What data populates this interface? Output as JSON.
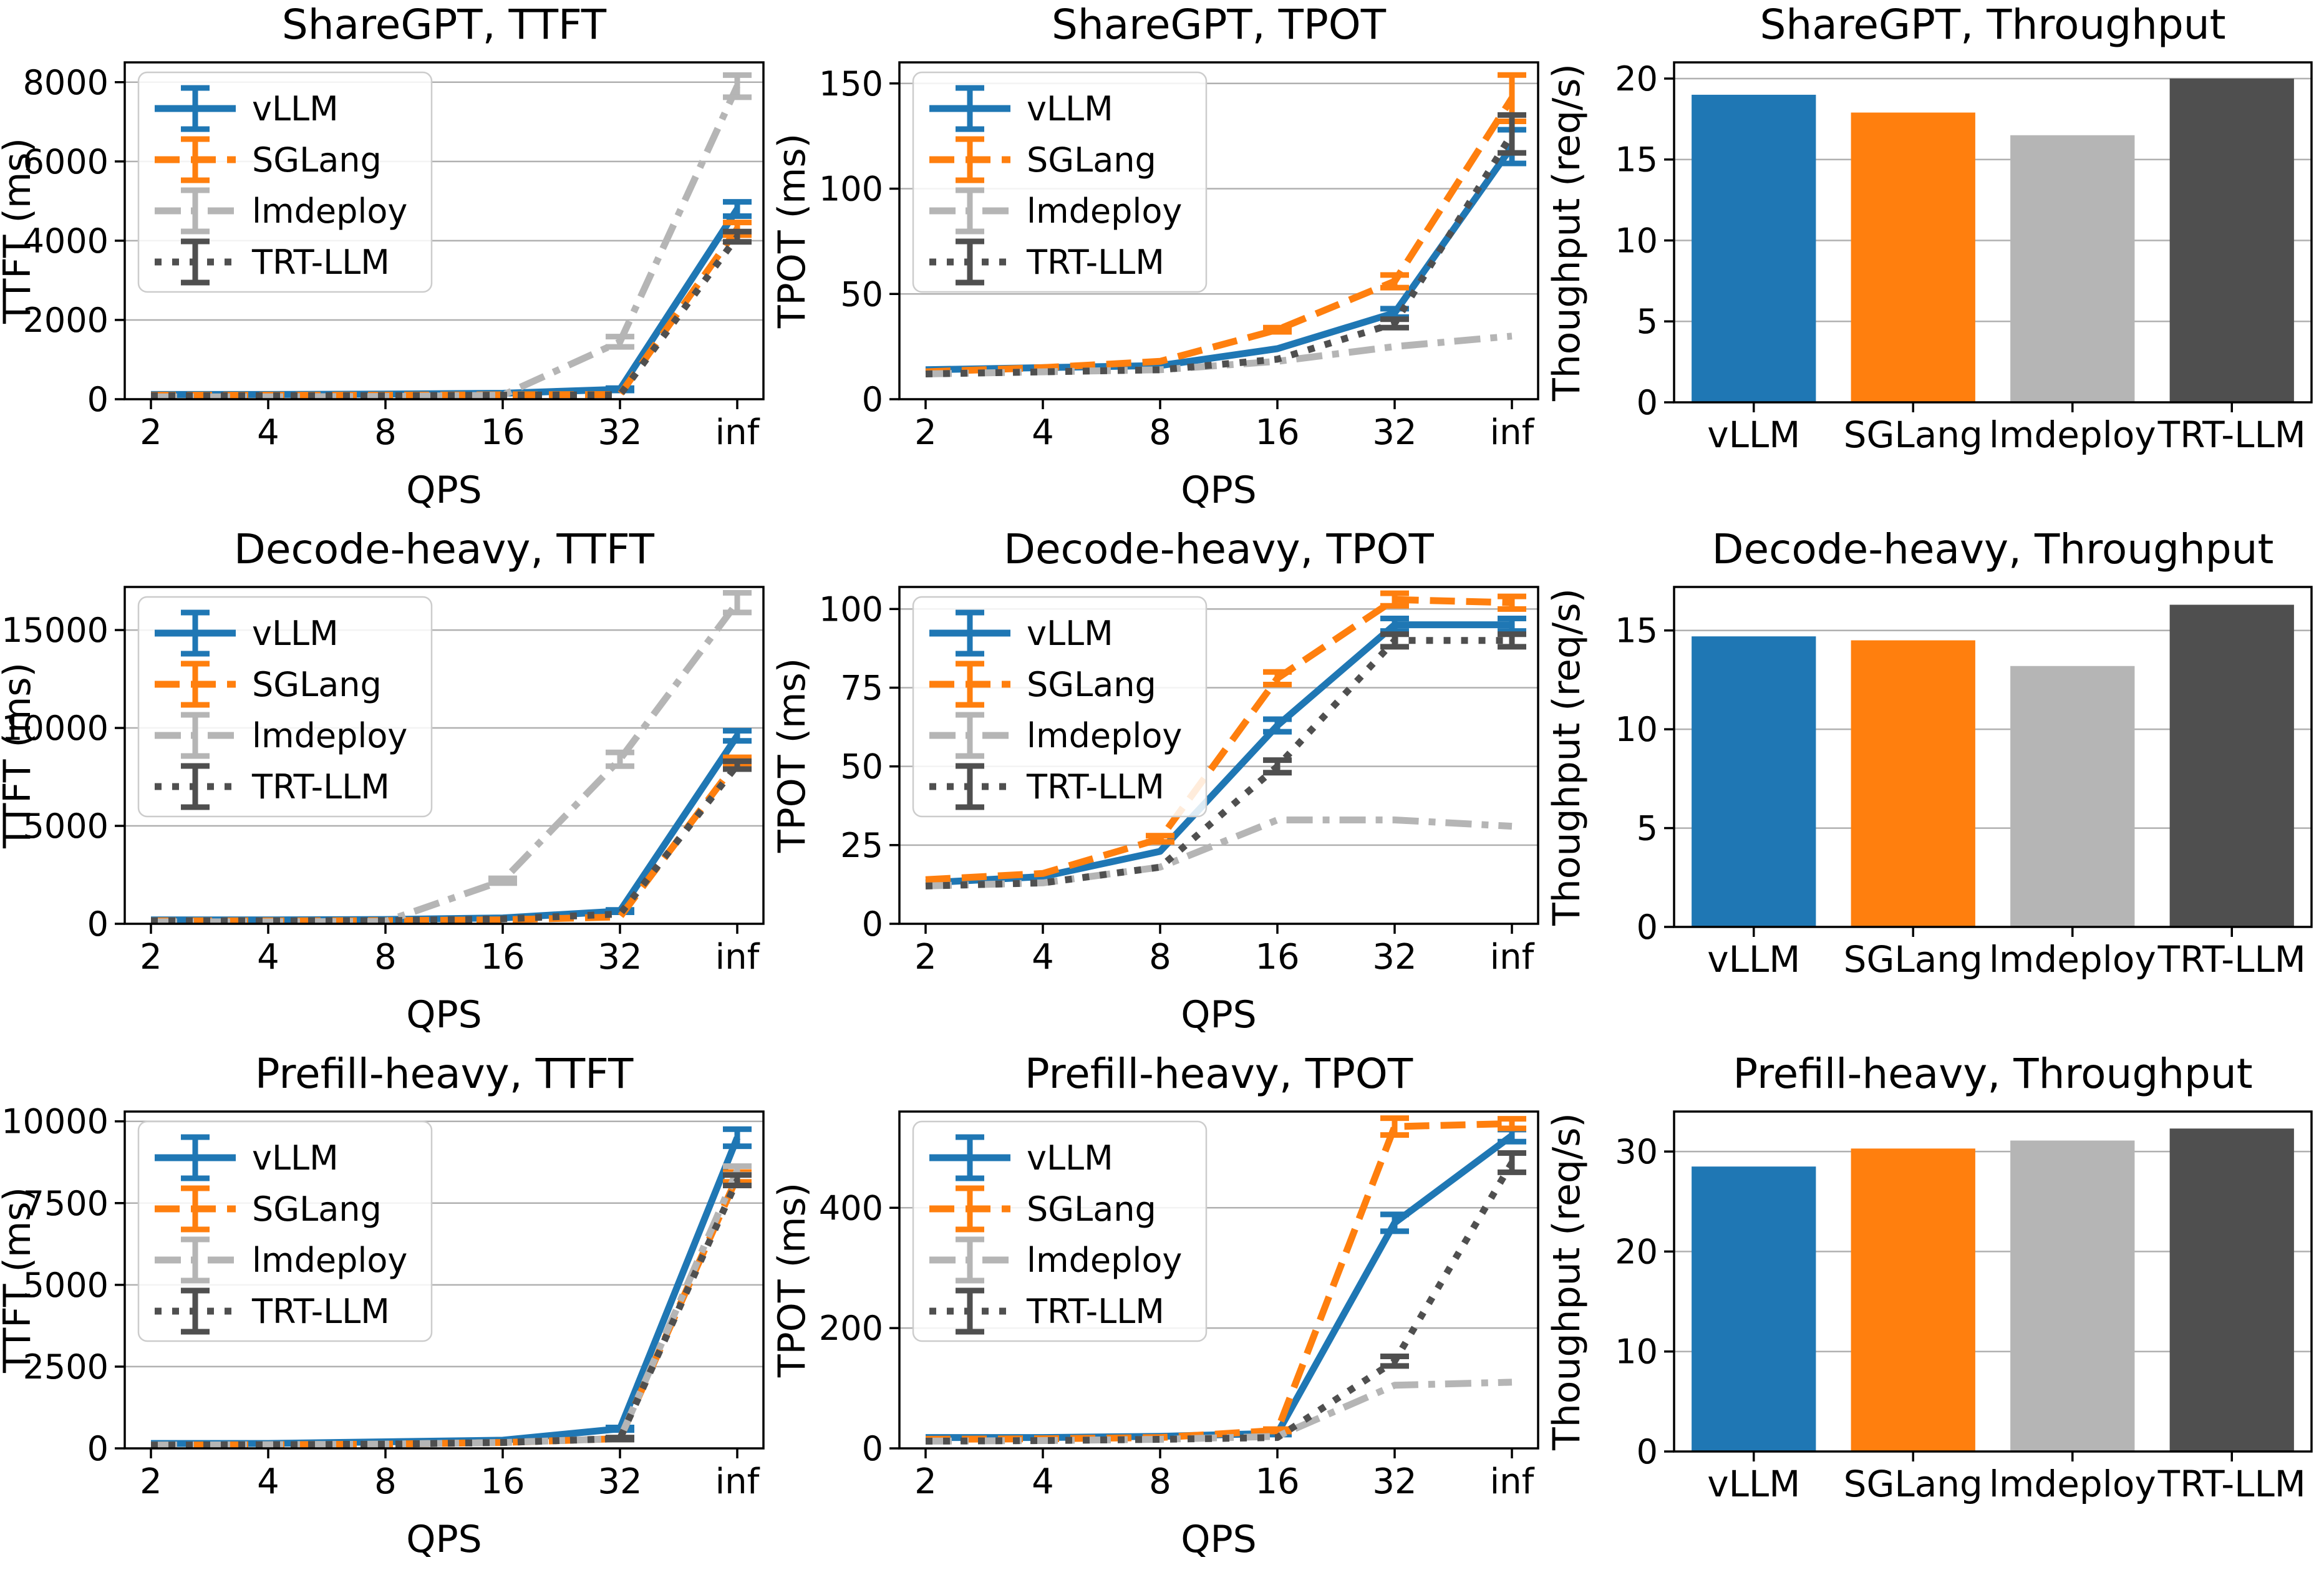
{
  "page": {
    "background": "#ffffff"
  },
  "colors": {
    "vLLM": "#1f77b4",
    "SGLang": "#ff7f0e",
    "lmdeploy": "#b5b5b5",
    "TRT-LLM": "#4f4f4f",
    "grid": "#b0b0b0",
    "spine": "#000000"
  },
  "chart_data": [
    {
      "type": "line",
      "title": "ShareGPT, TTFT",
      "xlabel": "QPS",
      "ylabel": "TTFT (ms)",
      "x_ticklabels": [
        "2",
        "4",
        "8",
        "16",
        "32",
        "inf"
      ],
      "yticks": [
        0,
        2000,
        4000,
        6000,
        8000
      ],
      "ylim": [
        0,
        8500
      ],
      "grid": true,
      "legend": {
        "position": "upper-left",
        "entries": [
          "vLLM",
          "SGLang",
          "lmdeploy",
          "TRT-LLM"
        ]
      },
      "series": [
        {
          "name": "vLLM",
          "color": "#1f77b4",
          "linestyle": "solid",
          "values": [
            120,
            120,
            130,
            150,
            250,
            4800
          ],
          "yerr": [
            0,
            0,
            0,
            0,
            30,
            180
          ]
        },
        {
          "name": "SGLang",
          "color": "#ff7f0e",
          "linestyle": "dashed",
          "values": [
            100,
            100,
            100,
            110,
            120,
            4300
          ],
          "yerr": [
            0,
            0,
            0,
            0,
            0,
            160
          ]
        },
        {
          "name": "lmdeploy",
          "color": "#b5b5b5",
          "linestyle": "dashdot",
          "values": [
            60,
            60,
            70,
            100,
            1450,
            7900
          ],
          "yerr": [
            0,
            0,
            0,
            0,
            130,
            280
          ]
        },
        {
          "name": "TRT-LLM",
          "color": "#4f4f4f",
          "linestyle": "dotted",
          "values": [
            90,
            90,
            90,
            100,
            110,
            4100
          ],
          "yerr": [
            0,
            0,
            0,
            0,
            0,
            130
          ]
        }
      ]
    },
    {
      "type": "line",
      "title": "ShareGPT, TPOT",
      "xlabel": "QPS",
      "ylabel": "TPOT (ms)",
      "x_ticklabels": [
        "2",
        "4",
        "8",
        "16",
        "32",
        "inf"
      ],
      "yticks": [
        0,
        50,
        100,
        150
      ],
      "ylim": [
        0,
        160
      ],
      "grid": true,
      "legend": {
        "position": "upper-left",
        "entries": [
          "vLLM",
          "SGLang",
          "lmdeploy",
          "TRT-LLM"
        ]
      },
      "series": [
        {
          "name": "vLLM",
          "color": "#1f77b4",
          "linestyle": "solid",
          "values": [
            14,
            15,
            16,
            24,
            41,
            120
          ],
          "yerr": [
            0,
            0,
            0,
            0,
            2,
            8
          ]
        },
        {
          "name": "SGLang",
          "color": "#ff7f0e",
          "linestyle": "dashed",
          "values": [
            13,
            15,
            18,
            33,
            56,
            143
          ],
          "yerr": [
            0,
            0,
            0,
            1,
            3,
            11
          ]
        },
        {
          "name": "lmdeploy",
          "color": "#b5b5b5",
          "linestyle": "dashdot",
          "values": [
            12,
            13,
            14,
            18,
            25,
            30
          ],
          "yerr": [
            0,
            0,
            0,
            0,
            0,
            0
          ]
        },
        {
          "name": "TRT-LLM",
          "color": "#4f4f4f",
          "linestyle": "dotted",
          "values": [
            12,
            13,
            14,
            19,
            36,
            126
          ],
          "yerr": [
            0,
            0,
            0,
            0,
            2,
            9
          ]
        }
      ]
    },
    {
      "type": "bar",
      "title": "ShareGPT, Throughput",
      "ylabel": "Thoughput (req/s)",
      "categories": [
        "vLLM",
        "SGLang",
        "lmdeploy",
        "TRT-LLM"
      ],
      "values": [
        19.0,
        17.9,
        16.5,
        20.0
      ],
      "bar_colors": [
        "#1f77b4",
        "#ff7f0e",
        "#b5b5b5",
        "#4f4f4f"
      ],
      "yticks": [
        0,
        5,
        10,
        15,
        20
      ],
      "ylim": [
        0,
        21
      ],
      "grid": true
    },
    {
      "type": "line",
      "title": "Decode-heavy, TTFT",
      "xlabel": "QPS",
      "ylabel": "TTFT (ms)",
      "x_ticklabels": [
        "2",
        "4",
        "8",
        "16",
        "32",
        "inf"
      ],
      "yticks": [
        0,
        5000,
        10000,
        15000
      ],
      "ylim": [
        0,
        17200
      ],
      "grid": true,
      "legend": {
        "position": "upper-left",
        "entries": [
          "vLLM",
          "SGLang",
          "lmdeploy",
          "TRT-LLM"
        ]
      },
      "series": [
        {
          "name": "vLLM",
          "color": "#1f77b4",
          "linestyle": "solid",
          "values": [
            200,
            200,
            220,
            300,
            650,
            9600
          ],
          "yerr": [
            0,
            0,
            0,
            0,
            60,
            260
          ]
        },
        {
          "name": "SGLang",
          "color": "#ff7f0e",
          "linestyle": "dashed",
          "values": [
            150,
            150,
            160,
            200,
            350,
            8300
          ],
          "yerr": [
            0,
            0,
            0,
            0,
            0,
            200
          ]
        },
        {
          "name": "lmdeploy",
          "color": "#b5b5b5",
          "linestyle": "dashdot",
          "values": [
            100,
            100,
            120,
            2200,
            8400,
            16400
          ],
          "yerr": [
            0,
            0,
            0,
            120,
            350,
            500
          ]
        },
        {
          "name": "TRT-LLM",
          "color": "#4f4f4f",
          "linestyle": "dotted",
          "values": [
            150,
            150,
            160,
            250,
            500,
            8100
          ],
          "yerr": [
            0,
            0,
            0,
            0,
            0,
            200
          ]
        }
      ]
    },
    {
      "type": "line",
      "title": "Decode-heavy, TPOT",
      "xlabel": "QPS",
      "ylabel": "TPOT (ms)",
      "x_ticklabels": [
        "2",
        "4",
        "8",
        "16",
        "32",
        "inf"
      ],
      "yticks": [
        0,
        25,
        50,
        75,
        100
      ],
      "ylim": [
        0,
        107
      ],
      "grid": true,
      "legend": {
        "position": "upper-left",
        "entries": [
          "vLLM",
          "SGLang",
          "lmdeploy",
          "TRT-LLM"
        ]
      },
      "series": [
        {
          "name": "vLLM",
          "color": "#1f77b4",
          "linestyle": "solid",
          "values": [
            13,
            15,
            23,
            63,
            95,
            95
          ],
          "yerr": [
            0,
            0,
            0,
            2,
            2,
            2
          ]
        },
        {
          "name": "SGLang",
          "color": "#ff7f0e",
          "linestyle": "dashed",
          "values": [
            14,
            16,
            27,
            78,
            103,
            102
          ],
          "yerr": [
            0,
            0,
            1,
            2,
            2,
            2
          ]
        },
        {
          "name": "lmdeploy",
          "color": "#b5b5b5",
          "linestyle": "dashdot",
          "values": [
            12,
            13,
            18,
            33,
            33,
            31
          ],
          "yerr": [
            0,
            0,
            0,
            0,
            0,
            0
          ]
        },
        {
          "name": "TRT-LLM",
          "color": "#4f4f4f",
          "linestyle": "dotted",
          "values": [
            12,
            13,
            18,
            50,
            90,
            90
          ],
          "yerr": [
            0,
            0,
            0,
            2,
            2,
            2
          ]
        }
      ]
    },
    {
      "type": "bar",
      "title": "Decode-heavy, Throughput",
      "ylabel": "Thoughput (req/s)",
      "categories": [
        "vLLM",
        "SGLang",
        "lmdeploy",
        "TRT-LLM"
      ],
      "values": [
        14.7,
        14.5,
        13.2,
        16.3
      ],
      "bar_colors": [
        "#1f77b4",
        "#ff7f0e",
        "#b5b5b5",
        "#4f4f4f"
      ],
      "yticks": [
        0,
        5,
        10,
        15
      ],
      "ylim": [
        0,
        17.2
      ],
      "grid": true
    },
    {
      "type": "line",
      "title": "Prefill-heavy, TTFT",
      "xlabel": "QPS",
      "ylabel": "TTFT (ms)",
      "x_ticklabels": [
        "2",
        "4",
        "8",
        "16",
        "32",
        "inf"
      ],
      "yticks": [
        0,
        2500,
        5000,
        7500,
        10000
      ],
      "ylim": [
        0,
        10300
      ],
      "grid": true,
      "legend": {
        "position": "upper-left",
        "entries": [
          "vLLM",
          "SGLang",
          "lmdeploy",
          "TRT-LLM"
        ]
      },
      "series": [
        {
          "name": "vLLM",
          "color": "#1f77b4",
          "linestyle": "solid",
          "values": [
            150,
            150,
            200,
            250,
            600,
            9500
          ],
          "yerr": [
            0,
            0,
            0,
            0,
            40,
            260
          ]
        },
        {
          "name": "SGLang",
          "color": "#ff7f0e",
          "linestyle": "dashed",
          "values": [
            100,
            110,
            130,
            180,
            300,
            8300
          ],
          "yerr": [
            0,
            0,
            0,
            0,
            30,
            150
          ]
        },
        {
          "name": "lmdeploy",
          "color": "#b5b5b5",
          "linestyle": "dashdot",
          "values": [
            100,
            110,
            130,
            180,
            300,
            8500
          ],
          "yerr": [
            0,
            0,
            0,
            0,
            30,
            130
          ]
        },
        {
          "name": "TRT-LLM",
          "color": "#4f4f4f",
          "linestyle": "dotted",
          "values": [
            100,
            110,
            130,
            180,
            300,
            8200
          ],
          "yerr": [
            0,
            0,
            0,
            0,
            30,
            160
          ]
        }
      ]
    },
    {
      "type": "line",
      "title": "Prefill-heavy, TPOT",
      "xlabel": "QPS",
      "ylabel": "TPOT (ms)",
      "x_ticklabels": [
        "2",
        "4",
        "8",
        "16",
        "32",
        "inf"
      ],
      "yticks": [
        0,
        200,
        400
      ],
      "ylim": [
        0,
        560
      ],
      "grid": true,
      "legend": {
        "position": "upper-left",
        "entries": [
          "vLLM",
          "SGLang",
          "lmdeploy",
          "TRT-LLM"
        ]
      },
      "series": [
        {
          "name": "vLLM",
          "color": "#1f77b4",
          "linestyle": "solid",
          "values": [
            18,
            18,
            20,
            25,
            375,
            520
          ],
          "yerr": [
            0,
            0,
            0,
            2,
            14,
            10
          ]
        },
        {
          "name": "SGLang",
          "color": "#ff7f0e",
          "linestyle": "dashed",
          "values": [
            15,
            16,
            18,
            30,
            535,
            540
          ],
          "yerr": [
            0,
            0,
            0,
            2,
            14,
            8
          ]
        },
        {
          "name": "lmdeploy",
          "color": "#b5b5b5",
          "linestyle": "dashdot",
          "values": [
            12,
            13,
            15,
            20,
            105,
            110
          ],
          "yerr": [
            0,
            0,
            0,
            0,
            0,
            0
          ]
        },
        {
          "name": "TRT-LLM",
          "color": "#4f4f4f",
          "linestyle": "dotted",
          "values": [
            12,
            13,
            15,
            18,
            145,
            475
          ],
          "yerr": [
            0,
            0,
            0,
            0,
            8,
            16
          ]
        }
      ]
    },
    {
      "type": "bar",
      "title": "Prefill-heavy, Throughput",
      "ylabel": "Thoughput (req/s)",
      "categories": [
        "vLLM",
        "SGLang",
        "lmdeploy",
        "TRT-LLM"
      ],
      "values": [
        28.5,
        30.3,
        31.1,
        32.3
      ],
      "bar_colors": [
        "#1f77b4",
        "#ff7f0e",
        "#b5b5b5",
        "#4f4f4f"
      ],
      "yticks": [
        0,
        10,
        20,
        30
      ],
      "ylim": [
        0,
        34
      ],
      "grid": true
    }
  ]
}
